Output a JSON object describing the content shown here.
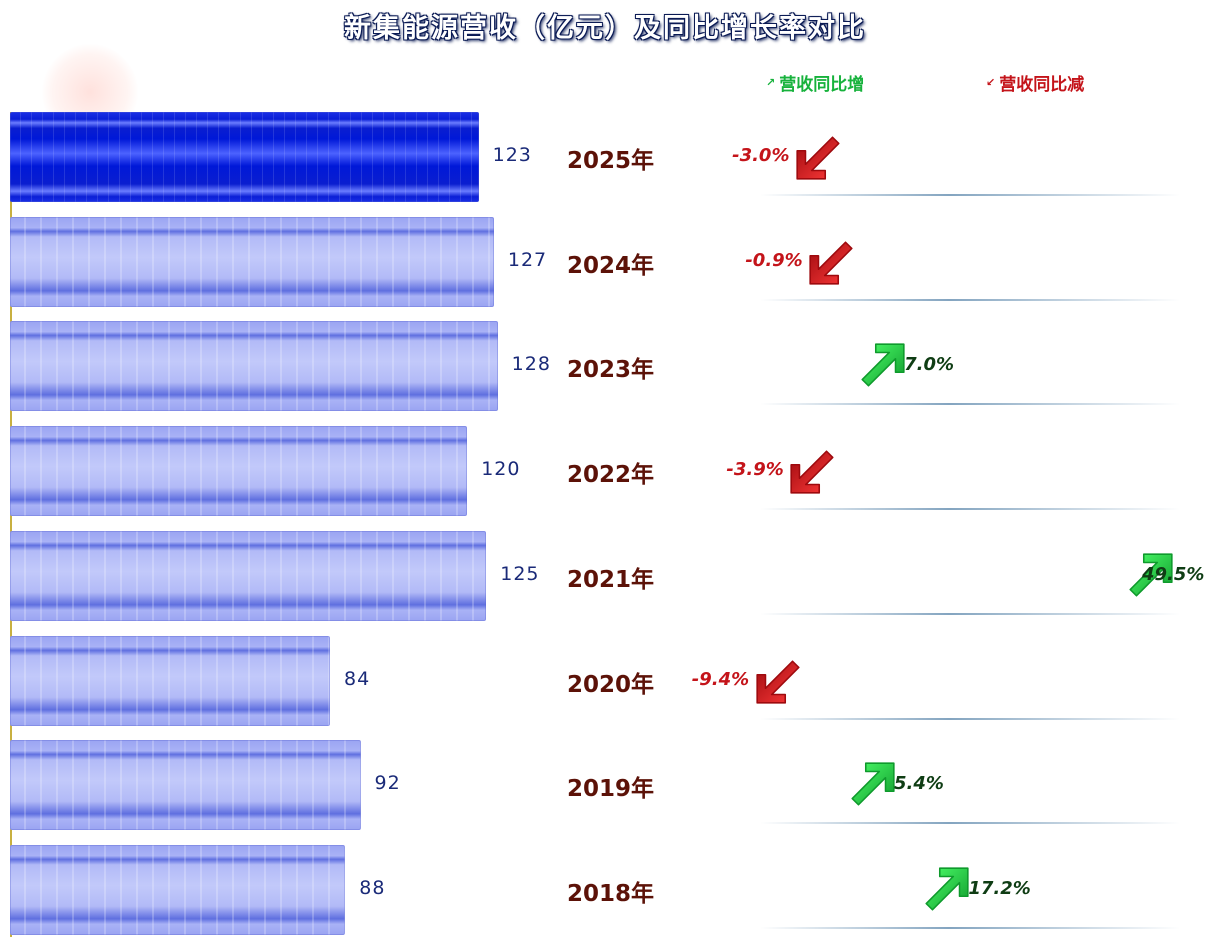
{
  "chart_data": {
    "type": "bar",
    "title": "新集能源营收（亿元）及同比增长率对比",
    "orientation": "horizontal",
    "categories": [
      "2025年",
      "2024年",
      "2023年",
      "2022年",
      "2021年",
      "2020年",
      "2019年",
      "2018年"
    ],
    "series": [
      {
        "values": [
          123,
          127,
          128,
          120,
          125,
          84,
          92,
          88
        ]
      },
      {
        "values": [
          -3.0,
          -0.9,
          7.0,
          -3.9,
          49.5,
          -9.4,
          5.4,
          17.2
        ]
      }
    ],
    "value_labels": [
      "123",
      "127",
      "128",
      "120",
      "125",
      "84",
      "92",
      "88"
    ],
    "growth_labels": [
      "-3.0%",
      "-0.9%",
      "7.0%",
      "-3.9%",
      "49.5%",
      "-9.4%",
      "5.4%",
      "17.2%"
    ],
    "highlight_index": 0,
    "legend": [
      {
        "label": "营收同比增",
        "color": "#17b23c",
        "icon": "arrow-up-right-icon"
      },
      {
        "label": "营收同比减",
        "color": "#c4141a",
        "icon": "arrow-down-left-icon"
      }
    ],
    "legend_position": "top-right",
    "colors": {
      "bar": "#a9b2f6",
      "bar_highlight": "#0018d8",
      "up": "#17b23c",
      "down": "#c4141a",
      "year_text": "#5c1208"
    }
  }
}
